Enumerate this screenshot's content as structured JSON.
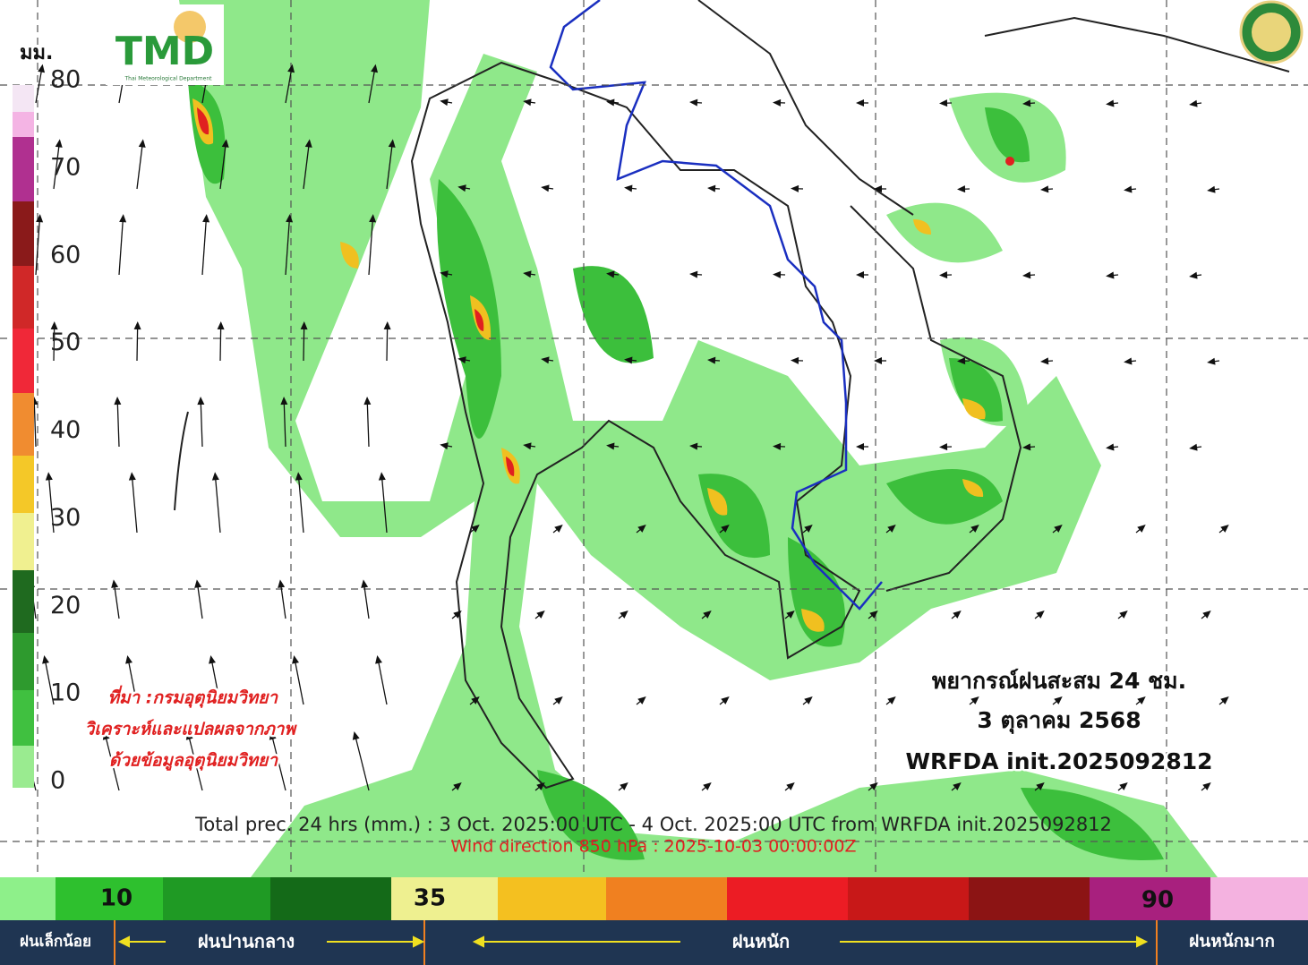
{
  "header": {
    "unit": "มม.",
    "logo_text": "TMD",
    "logo_subtitle": "Thai Meteorological Department"
  },
  "colorbar": {
    "ticks": [
      80,
      70,
      60,
      50,
      40,
      30,
      20,
      10,
      0
    ]
  },
  "source_note": [
    "ที่มา :กรมอุตุนิยมวิทยา",
    "วิเคราะห์และแปลผลจากภาพ",
    "ด้วยข้อมูลอุตุนิยมวิทยา"
  ],
  "forecast_box": {
    "title": "พยากรณ์ฝนสะสม 24 ชม.",
    "date": "3 ตุลาคม 2568",
    "model": "WRFDA init.2025092812"
  },
  "caption": {
    "line1": "Total prec. 24 hrs (mm.) : 3 Oct. 2025:00 UTC - 4 Oct. 2025:00 UTC from WRFDA init.2025092812",
    "line2": "Wind direction 850 hPa : 2025-10-03 00:00:00Z"
  },
  "legend": {
    "ticks": [
      10,
      35,
      90
    ],
    "categories": [
      "ฝนเล็กน้อย",
      "ฝนปานกลาง",
      "ฝนหนัก",
      "ฝนหนักมาก"
    ]
  }
}
